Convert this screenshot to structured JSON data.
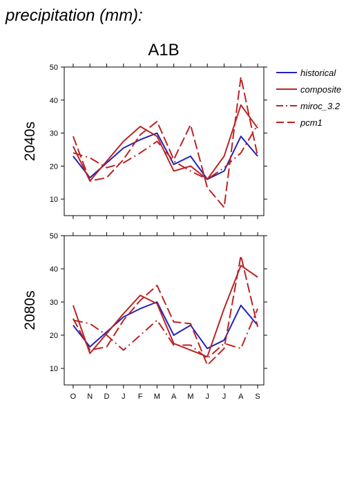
{
  "heading": "precipitation (mm):",
  "chart_data": {
    "type": "line",
    "title": "A1B",
    "categories": [
      "O",
      "N",
      "D",
      "J",
      "F",
      "M",
      "A",
      "M",
      "J",
      "J",
      "A",
      "S"
    ],
    "ylim": [
      5,
      50
    ],
    "yticks": [
      10,
      20,
      30,
      40,
      50
    ],
    "grid": false,
    "legend_position": "top-right",
    "legend": [
      {
        "name": "historical",
        "color": "#2222bb",
        "dash": "solid"
      },
      {
        "name": "composite",
        "color": "#bb2222",
        "dash": "solid"
      },
      {
        "name": "miroc_3.2",
        "color": "#bb2222",
        "dash": "dash-dot"
      },
      {
        "name": "pcm1",
        "color": "#bb2222",
        "dash": "dashed"
      }
    ],
    "panels": [
      {
        "label": "2040s",
        "series": [
          {
            "name": "historical",
            "values": [
              23,
              16.5,
              21,
              25.5,
              28,
              30,
              20.5,
              23,
              16,
              18.5,
              29,
              23
            ]
          },
          {
            "name": "composite",
            "values": [
              26,
              15.5,
              21.5,
              27.5,
              32,
              29,
              18.5,
              20,
              16,
              23,
              38.5,
              31.5
            ]
          },
          {
            "name": "miroc_3.2",
            "values": [
              24,
              22.5,
              19.5,
              21,
              24,
              27.5,
              21.5,
              18.5,
              16,
              19.5,
              24,
              32.5
            ]
          },
          {
            "name": "pcm1",
            "values": [
              29,
              15.5,
              16.5,
              22,
              29.5,
              33.5,
              22,
              32.5,
              13.5,
              7.5,
              47,
              23
            ]
          }
        ]
      },
      {
        "label": "2080s",
        "series": [
          {
            "name": "historical",
            "values": [
              23,
              16.5,
              21,
              25.5,
              28,
              30,
              20,
              23,
              16,
              18.5,
              29,
              23
            ]
          },
          {
            "name": "composite",
            "values": [
              29,
              14.5,
              20.5,
              26.5,
              32,
              29.5,
              17.5,
              15.5,
              13.5,
              28,
              41,
              37.5
            ]
          },
          {
            "name": "miroc_3.2",
            "values": [
              24.5,
              23.5,
              20,
              15.5,
              20,
              24.5,
              17,
              17,
              13,
              17.5,
              16,
              28
            ]
          },
          {
            "name": "pcm1",
            "values": [
              25,
              15.5,
              16.5,
              24.5,
              30.5,
              35,
              24,
              23.5,
              11,
              16,
              44,
              22.5
            ]
          }
        ]
      }
    ]
  }
}
